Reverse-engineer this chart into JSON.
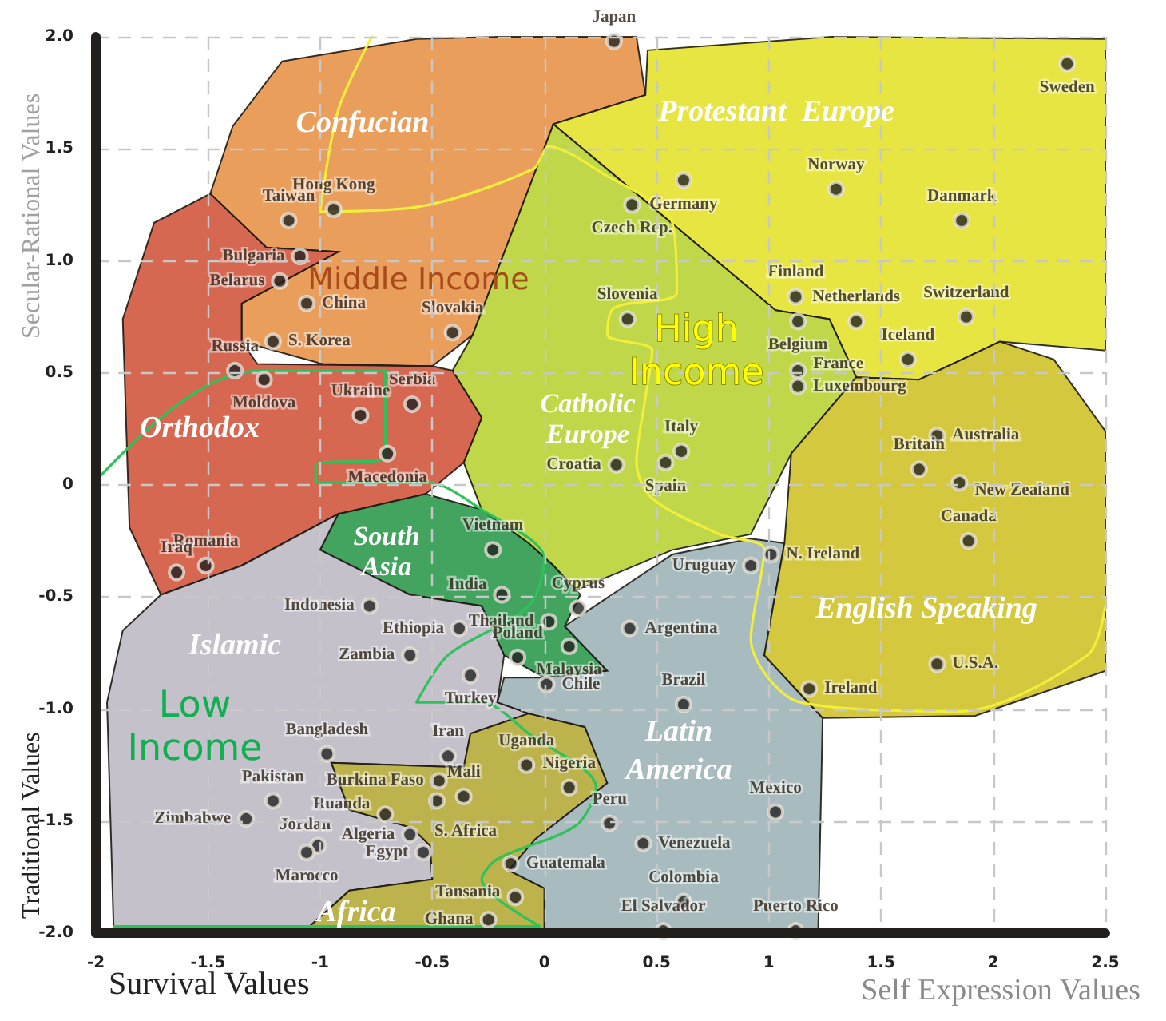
{
  "chart_data": {
    "type": "scatter",
    "xlabel": "Survival Values",
    "ylabel": "Traditional Values",
    "xlim": [
      -2,
      2.5
    ],
    "ylim": [
      -2,
      2
    ],
    "xticks": [
      -2,
      -1.5,
      -1,
      -0.5,
      0,
      0.5,
      1,
      1.5,
      2,
      2.5
    ],
    "yticks": [
      {
        "value": -2,
        "label": "-2.0"
      },
      {
        "value": -1.5,
        "label": "-1.5"
      },
      {
        "value": -1,
        "label": "-1.0"
      },
      {
        "value": -0.5,
        "label": "-0.5"
      },
      0,
      {
        "value": 0.5,
        "label": "0.5"
      },
      {
        "value": 1,
        "label": "1.0"
      },
      {
        "value": 1.5,
        "label": "1.5"
      },
      {
        "value": 2,
        "label": "2.0"
      }
    ],
    "grid": true,
    "annotations": [
      "Self Expression Values",
      "Secular-Rational Values",
      "Confucian",
      "Protestant  Europe",
      "Orthodox",
      "Catholic Europe",
      "South Asia",
      "Islamic",
      "English Speaking",
      "Latin America",
      "Africa",
      "Middle Income",
      "High Income",
      "Low Income"
    ],
    "series": [
      {
        "type": "area",
        "color": "#e8944a",
        "x": [
          -1.17,
          -0.57,
          -0.2,
          0.41,
          0.45,
          0.04,
          -0.32,
          -0.5,
          -0.99,
          -1.35,
          -1.35,
          -0.92,
          -1.24,
          -1.49,
          -1.39
        ],
        "values": [
          1.89,
          1.99,
          2.0,
          2.0,
          1.74,
          1.61,
          0.67,
          0.53,
          0.54,
          0.64,
          0.81,
          1.04,
          1.06,
          1.3,
          1.6
        ]
      },
      {
        "type": "area",
        "color": "#e4e22e",
        "x": [
          0.04,
          0.45,
          0.46,
          1.28,
          2.5,
          2.5,
          2.03,
          1.67,
          1.39,
          1.27,
          1.03
        ],
        "values": [
          1.61,
          1.74,
          1.94,
          2.0,
          1.99,
          0.6,
          0.64,
          0.47,
          0.48,
          0.74,
          0.78
        ]
      },
      {
        "type": "area",
        "color": "#b8d334",
        "x": [
          0.04,
          1.03,
          1.27,
          1.39,
          1.1,
          0.92,
          0.57,
          0.14,
          0.04,
          -0.07,
          -0.28,
          -0.36,
          -0.28,
          -0.41,
          -0.32
        ],
        "values": [
          1.61,
          0.78,
          0.74,
          0.48,
          0.14,
          -0.22,
          -0.29,
          -0.47,
          -0.36,
          -0.26,
          -0.11,
          0.1,
          0.3,
          0.51,
          0.67
        ]
      },
      {
        "type": "area",
        "color": "#d2573d",
        "x": [
          -1.49,
          -1.24,
          -0.92,
          -1.35,
          -1.35,
          -1.28,
          -0.5,
          -0.41,
          -0.28,
          -0.36,
          -0.53,
          -0.92,
          -1.35,
          -1.71,
          -1.85,
          -1.88,
          -1.74
        ],
        "values": [
          1.3,
          1.06,
          1.04,
          0.81,
          0.64,
          0.54,
          0.53,
          0.51,
          0.3,
          0.1,
          -0.04,
          -0.13,
          -0.36,
          -0.49,
          -0.19,
          0.74,
          1.17
        ]
      },
      {
        "type": "area",
        "color": "#2e9a4e",
        "x": [
          -0.53,
          -0.28,
          -0.07,
          0.04,
          0.16,
          0.09,
          0.28,
          0,
          -0.18,
          -0.28,
          -0.6,
          -1.0,
          -0.92
        ],
        "values": [
          -0.04,
          -0.11,
          -0.26,
          -0.36,
          -0.49,
          -0.63,
          -0.83,
          -0.86,
          -0.76,
          -0.54,
          -0.49,
          -0.29,
          -0.13
        ]
      },
      {
        "type": "area",
        "color": "#bfbac5",
        "x": [
          -1.71,
          -1.35,
          -0.92,
          -1.0,
          -0.6,
          -0.28,
          -0.18,
          -0.21,
          -0.07,
          -0.33,
          -0.36,
          -0.95,
          -0.87,
          -0.59,
          -0.51,
          -0.5,
          -0.87,
          -1.08,
          -1.92,
          -1.95,
          -1.88
        ],
        "values": [
          -0.49,
          -0.36,
          -0.13,
          -0.29,
          -0.49,
          -0.54,
          -0.76,
          -0.97,
          -1.02,
          -1.11,
          -1.26,
          -1.24,
          -1.45,
          -1.53,
          -1.61,
          -1.76,
          -1.81,
          -2.0,
          -2.0,
          -0.97,
          -0.65
        ]
      },
      {
        "type": "area",
        "color": "#b5ab3a",
        "x": [
          -0.95,
          -0.36,
          -0.33,
          -0.07,
          0.18,
          0.28,
          -0.04,
          -0.16,
          0,
          0,
          -1.08,
          -0.87,
          -0.5,
          -0.51,
          -0.59,
          -0.87
        ],
        "values": [
          -1.24,
          -1.26,
          -1.11,
          -1.02,
          -1.08,
          -1.33,
          -1.58,
          -1.72,
          -1.8,
          -2.0,
          -2.0,
          -1.81,
          -1.76,
          -1.61,
          -1.53,
          -1.45
        ]
      },
      {
        "type": "area",
        "color": "#9fb5b8",
        "x": [
          0.09,
          0.57,
          0.92,
          1.07,
          0.98,
          1.24,
          1.22,
          0,
          0,
          -0.16,
          -0.04,
          0.28,
          0.18,
          -0.07,
          -0.21,
          -0.18,
          0,
          0.28
        ],
        "values": [
          -0.63,
          -0.31,
          -0.24,
          -0.26,
          -0.76,
          -1.04,
          -2.0,
          -2.0,
          -1.8,
          -1.72,
          -1.58,
          -1.33,
          -1.08,
          -1.02,
          -0.97,
          -0.86,
          -0.86,
          -0.83
        ]
      },
      {
        "type": "area",
        "color": "#cfc22a",
        "x": [
          1.39,
          1.67,
          2.03,
          2.27,
          2.5,
          2.5,
          1.92,
          1.24,
          0.98,
          1.07,
          1.1
        ],
        "values": [
          0.48,
          0.47,
          0.64,
          0.56,
          0.24,
          -0.83,
          -1.03,
          -1.04,
          -0.76,
          -0.26,
          0.14
        ]
      },
      {
        "type": "line",
        "color": "#f2ef3a",
        "x": [
          -0.77,
          -0.92,
          -1.0,
          -0.57,
          -0.05,
          0.02,
          0.26,
          0.57,
          0.59,
          0.31,
          0.28,
          0.48,
          0.45,
          0.41,
          0.48,
          0.78,
          0.98,
          0.92,
          1.14,
          1.85,
          2.42,
          2.5
        ],
        "values": [
          2.0,
          1.67,
          1.22,
          1.24,
          1.41,
          1.51,
          1.39,
          1.17,
          0.86,
          0.79,
          0.67,
          0.6,
          0.39,
          0.1,
          -0.06,
          -0.22,
          -0.29,
          -0.69,
          -0.97,
          -1.01,
          -0.76,
          -0.54
        ]
      },
      {
        "type": "line",
        "color": "#2ec25a",
        "x": [
          -1.99,
          -1.71,
          -1.47,
          -1.26,
          -0.71,
          -0.71,
          -1.02,
          -1.02,
          -0.52,
          -0.28,
          0,
          -0.07,
          -0.43,
          -0.57,
          -0.28,
          -0.07,
          0.23,
          0.14,
          -0.21,
          -0.28,
          -0.02,
          -1.92
        ],
        "values": [
          0.03,
          0.3,
          0.46,
          0.51,
          0.51,
          0.12,
          0.09,
          0.01,
          0.01,
          -0.11,
          -0.33,
          -0.54,
          -0.76,
          -0.97,
          -0.97,
          -1.11,
          -1.35,
          -1.52,
          -1.67,
          -1.76,
          -1.97,
          -1.97
        ]
      },
      {
        "color": "#222222",
        "marker": "circle",
        "x": [
          0.31,
          2.33,
          -0.94,
          -1.14,
          0.62,
          1.3,
          0.39,
          1.86,
          -1.09,
          -1.18,
          -1.06,
          -1.21,
          -0.41,
          1.12,
          0.37,
          1.39,
          1.88,
          1.13,
          1.62,
          1.13,
          1.13,
          -1.38,
          -1.25,
          -0.82,
          -0.59,
          -0.7,
          1.75,
          0.61,
          1.67,
          0.32,
          0.54,
          1.85,
          1.89,
          -0.23,
          -1.51,
          -1.64,
          -0.19,
          1.01,
          0.92,
          -0.78,
          0.02,
          0.15,
          -0.38,
          0.38,
          -0.6,
          -0.12,
          0.11,
          1.75,
          0.01,
          -0.33,
          1.18,
          0.62,
          -0.97,
          -0.43,
          -0.08,
          0.11,
          -1.21,
          -0.36,
          -0.47,
          -1.33,
          -0.71,
          1.03,
          -1.01,
          0.29,
          -0.48,
          -0.6,
          0.44,
          -1.06,
          -0.54,
          -0.15,
          0.62,
          -0.13,
          -0.25,
          0.53,
          1.12
        ],
        "values": [
          1.98,
          1.88,
          1.23,
          1.18,
          1.36,
          1.32,
          1.25,
          1.18,
          1.02,
          0.91,
          0.81,
          0.64,
          0.68,
          0.84,
          0.74,
          0.73,
          0.75,
          0.73,
          0.56,
          0.51,
          0.44,
          0.51,
          0.47,
          0.31,
          0.36,
          0.14,
          0.22,
          0.15,
          0.07,
          0.09,
          0.1,
          0.01,
          -0.25,
          -0.29,
          -0.36,
          -0.39,
          -0.49,
          -0.31,
          -0.36,
          -0.54,
          -0.61,
          -0.55,
          -0.64,
          -0.64,
          -0.76,
          -0.77,
          -0.72,
          -0.8,
          -0.89,
          -0.85,
          -0.91,
          -0.98,
          -1.2,
          -1.21,
          -1.25,
          -1.35,
          -1.41,
          -1.39,
          -1.32,
          -1.49,
          -1.47,
          -1.46,
          -1.61,
          -1.51,
          -1.41,
          -1.56,
          -1.6,
          -1.64,
          -1.64,
          -1.69,
          -1.86,
          -1.84,
          -1.94,
          -1.99,
          -1.99
        ],
        "value_labels": [
          "Japan",
          "Sweden",
          "Hong Kong",
          "Taiwan",
          "Germany",
          "Norway",
          "Czech Rep.",
          "Danmark",
          "Bulgaria",
          "Belarus",
          "China",
          "S. Korea",
          "Slovakia",
          "Finland",
          "Slovenia",
          "Netherlands",
          "Switzerland",
          "Belgium",
          "Iceland",
          "France",
          "Luxembourg",
          "Russia",
          "Moldova",
          "Ukraine",
          "Serbia",
          "Macedonia",
          "Australia",
          "Italy",
          "Britain",
          "Croatia",
          "Spain",
          "New Zealand",
          "Canada",
          "Vietnam",
          "Romania",
          "Iraq",
          "India",
          "N. Ireland",
          "Uruguay",
          "Indonesia",
          "Thailand",
          "Cyprus",
          "Ethiopia",
          "Argentina",
          "Zambia",
          "Poland",
          "Malaysia",
          "U.S.A.",
          "Chile",
          "Turkey",
          "Ireland",
          "Brazil",
          "Bangladesh",
          "Iran",
          "Uganda",
          "Nigeria",
          "Pakistan",
          "Mali",
          "Burkina Faso",
          "Zimbabwe",
          "Ruanda",
          "Mexico",
          "Jordan",
          "Peru",
          "S. Africa",
          "Algeria",
          "Venezuela",
          "Marocco",
          "Egypt",
          "Guatemala",
          "Colombia",
          "Tansania",
          "Ghana",
          "El Salvador",
          "Puerto Rico"
        ]
      }
    ]
  }
}
